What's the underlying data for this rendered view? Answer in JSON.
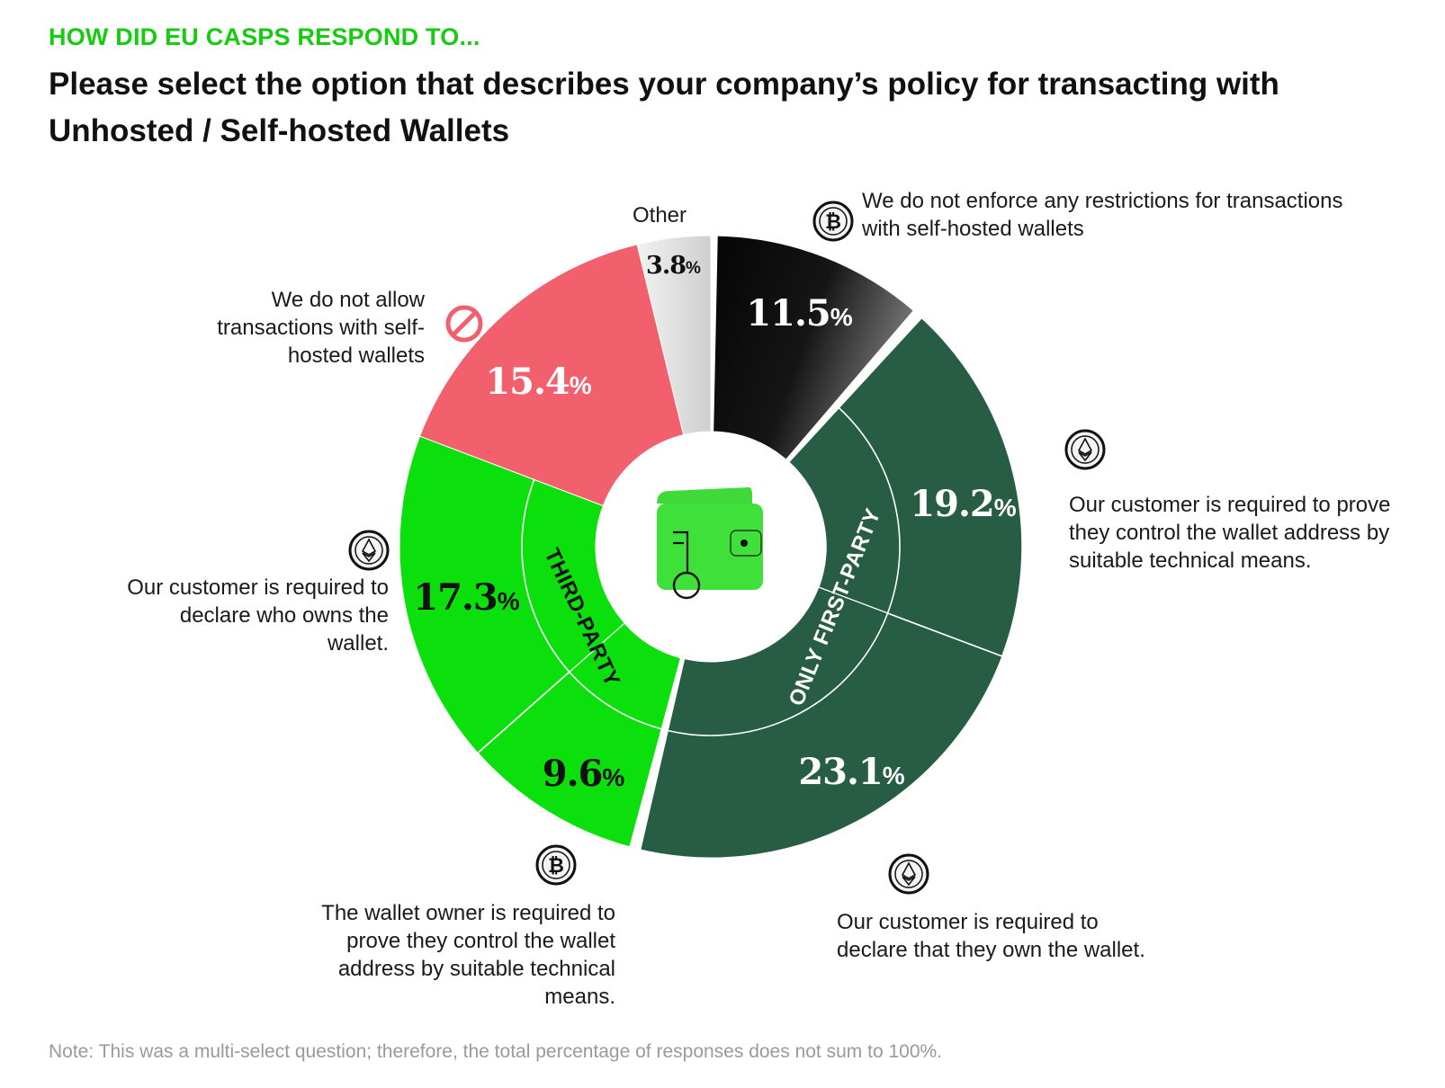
{
  "header": {
    "eyebrow": "HOW DID EU CASPS RESPOND TO...",
    "title": "Please select the option that describes your company’s policy for transacting with Unhosted / Self-hosted Wallets"
  },
  "note": "Note: This was a multi-select question; therefore, the total percentage of responses does not sum to 100%.",
  "colors": {
    "accent": "#16cc10",
    "black_segment": "#111111",
    "dark_green": "#275c45",
    "bright_green": "#0be00c",
    "pink": "#f2606e",
    "light_gray": "#e8e8e8"
  },
  "chart_data": {
    "type": "pie",
    "style": "donut",
    "slices": [
      {
        "label": "We do not enforce any restrictions for transactions with self-hosted wallets",
        "value": 11.5,
        "value_label": "11.5%",
        "color": "#111111",
        "group": "",
        "icon": "bitcoin-coin-icon"
      },
      {
        "label": "Our customer is required to prove they control the wallet address by suitable technical means.",
        "value": 19.2,
        "value_label": "19.2%",
        "color": "#275c45",
        "group": "ONLY FIRST-PARTY",
        "icon": "ethereum-coin-icon"
      },
      {
        "label": "Our customer is required to declare that they own the wallet.",
        "value": 23.1,
        "value_label": "23.1%",
        "color": "#275c45",
        "group": "ONLY FIRST-PARTY",
        "icon": "ethereum-coin-icon"
      },
      {
        "label": "The wallet owner is required to prove they control the wallet address by suitable technical means.",
        "value": 9.6,
        "value_label": "9.6%",
        "color": "#0be00c",
        "group": "THIRD-PARTY",
        "icon": "bitcoin-coin-icon"
      },
      {
        "label": "Our customer is required to declare who owns the wallet.",
        "value": 17.3,
        "value_label": "17.3%",
        "color": "#0be00c",
        "group": "THIRD-PARTY",
        "icon": "ethereum-coin-icon"
      },
      {
        "label": "We do not allow transactions with self-hosted wallets",
        "value": 15.4,
        "value_label": "15.4%",
        "color": "#f2606e",
        "group": "",
        "icon": "prohibited-icon"
      },
      {
        "label": "Other",
        "value": 3.8,
        "value_label": "3.8%",
        "color": "#e8e8e8",
        "group": "",
        "icon": ""
      }
    ],
    "groups": [
      "ONLY FIRST-PARTY",
      "THIRD-PARTY"
    ],
    "center_icon": "wallet-key-icon"
  }
}
